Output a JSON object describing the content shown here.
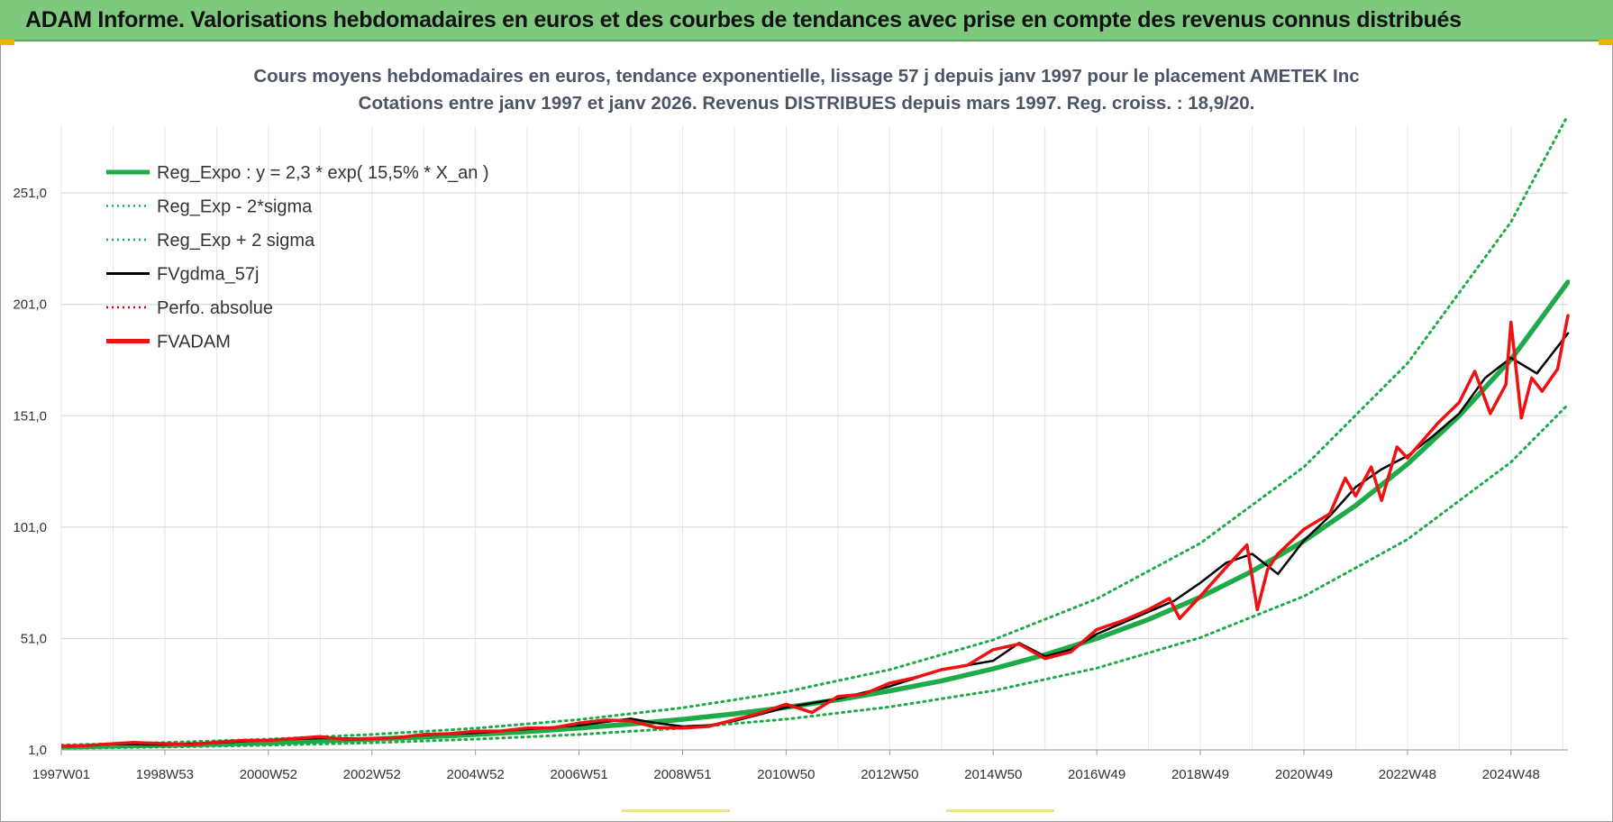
{
  "banner": {
    "title": "ADAM Informe. Valorisations hebdomadaires en euros et des courbes de tendances avec prise en compte des revenus connus distribués"
  },
  "colors": {
    "banner_bg": "#7fc97f",
    "reg_expo": "#1faa4a",
    "fvgdma": "#000000",
    "fvadam": "#ee1111",
    "perfo": "#cc0000",
    "grid": "#dcdcdc"
  },
  "chart_data": {
    "type": "line",
    "title": "Cours moyens hebdomadaires en euros, tendance exponentielle, lissage 57 j depuis janv 1997 pour le placement AMETEK Inc",
    "subtitle": "Cotations entre janv 1997 et janv 2026. Revenus DISTRIBUES depuis mars 1997. Reg. croiss. : 18,9/20.",
    "xlabel": "",
    "ylabel": "",
    "x_range": [
      1997.0,
      2026.1
    ],
    "ylim": [
      1.0,
      281.0
    ],
    "y_ticks": [
      1.0,
      51.0,
      101.0,
      151.0,
      201.0,
      251.0
    ],
    "y_tick_labels": [
      "1,0",
      "51,0",
      "101,0",
      "151,0",
      "201,0",
      "251,0"
    ],
    "x_ticks": [
      1997.0,
      1999.0,
      2001.0,
      2003.0,
      2005.0,
      2007.0,
      2009.0,
      2011.0,
      2013.0,
      2015.0,
      2017.0,
      2019.0,
      2021.0,
      2023.0,
      2025.0
    ],
    "x_tick_labels": [
      "1997W01",
      "1998W53",
      "2000W52",
      "2002W52",
      "2004W52",
      "2006W51",
      "2008W51",
      "2010W50",
      "2012W50",
      "2014W50",
      "2016W49",
      "2018W49",
      "2020W49",
      "2022W48",
      "2024W48"
    ],
    "grid": true,
    "legend_position": "top-left",
    "legend": [
      {
        "label": "Reg_Expo : y = 2,3 * exp( 15,5% *  X_an )",
        "style": "solid-thick",
        "color": "#1faa4a"
      },
      {
        "label": "Reg_Exp - 2*sigma",
        "style": "dotted",
        "color": "#1faa4a"
      },
      {
        "label": "Reg_Exp + 2 sigma",
        "style": "dotted",
        "color": "#1faa4a"
      },
      {
        "label": "FVgdma_57j",
        "style": "solid",
        "color": "#000000"
      },
      {
        "label": "Perfo. absolue",
        "style": "dotted",
        "color": "#cc0000"
      },
      {
        "label": "FVADAM",
        "style": "solid-thick",
        "color": "#ee1111"
      }
    ],
    "series": [
      {
        "name": "Reg_Expo : y = 2,3 * exp( 15,5% *  X_an )",
        "x": [
          1997.0,
          1998.0,
          1999.0,
          2000.0,
          2001.0,
          2002.0,
          2003.0,
          2004.0,
          2005.0,
          2006.0,
          2007.0,
          2008.0,
          2009.0,
          2010.0,
          2011.0,
          2012.0,
          2013.0,
          2014.0,
          2015.0,
          2016.0,
          2017.0,
          2018.0,
          2019.0,
          2020.0,
          2021.0,
          2022.0,
          2023.0,
          2024.0,
          2025.0,
          2026.1
        ],
        "values": [
          2.3,
          2.7,
          3.1,
          3.6,
          4.2,
          5.0,
          5.8,
          6.8,
          7.9,
          9.2,
          10.8,
          12.6,
          14.7,
          17.2,
          20.1,
          23.5,
          27.5,
          32.0,
          37.4,
          43.7,
          51.0,
          59.6,
          69.6,
          81.2,
          94.8,
          110.7,
          129.3,
          151.0,
          176.3,
          211.0
        ]
      },
      {
        "name": "Reg_Exp - 2*sigma",
        "x": [
          1997.0,
          1999.0,
          2001.0,
          2003.0,
          2005.0,
          2007.0,
          2009.0,
          2011.0,
          2013.0,
          2015.0,
          2017.0,
          2019.0,
          2021.0,
          2023.0,
          2025.0,
          2026.1
        ],
        "values": [
          1.7,
          2.3,
          3.1,
          4.2,
          5.8,
          7.9,
          10.8,
          14.8,
          20.3,
          27.6,
          37.7,
          51.4,
          70.0,
          95.5,
          130.2,
          156.0
        ]
      },
      {
        "name": "Reg_Exp + 2 sigma",
        "x": [
          1997.0,
          1999.0,
          2001.0,
          2003.0,
          2005.0,
          2007.0,
          2009.0,
          2011.0,
          2013.0,
          2015.0,
          2017.0,
          2019.0,
          2021.0,
          2023.0,
          2025.0,
          2026.1
        ],
        "values": [
          3.2,
          4.3,
          5.8,
          7.9,
          10.7,
          14.6,
          19.9,
          27.1,
          37.0,
          50.4,
          68.8,
          93.8,
          128.0,
          174.5,
          238.0,
          286.0
        ]
      },
      {
        "name": "FVgdma_57j",
        "x": [
          1997.0,
          1998.0,
          1999.0,
          2000.0,
          2001.0,
          2002.0,
          2003.0,
          2004.0,
          2005.0,
          2006.0,
          2007.0,
          2008.0,
          2008.5,
          2009.0,
          2009.5,
          2010.0,
          2011.0,
          2012.0,
          2013.0,
          2014.0,
          2015.0,
          2015.5,
          2016.0,
          2016.5,
          2017.0,
          2018.0,
          2018.5,
          2019.0,
          2019.5,
          2020.0,
          2020.5,
          2021.0,
          2021.5,
          2022.0,
          2022.5,
          2023.0,
          2023.5,
          2024.0,
          2024.5,
          2025.0,
          2025.5,
          2026.1
        ],
        "values": [
          2.5,
          3.6,
          3.4,
          4.2,
          5.4,
          6.3,
          5.9,
          7.6,
          8.6,
          10.3,
          12.0,
          15.0,
          13.0,
          11.5,
          12.0,
          14.0,
          20.0,
          24.0,
          29.5,
          37.0,
          41.0,
          49.0,
          43.0,
          46.0,
          53.0,
          63.0,
          68.0,
          76.0,
          85.0,
          89.0,
          80.0,
          95.0,
          106.0,
          119.0,
          127.0,
          133.0,
          142.0,
          152.0,
          168.0,
          177.0,
          170.0,
          188.0
        ]
      },
      {
        "name": "FVADAM",
        "x": [
          1997.0,
          1997.5,
          1998.0,
          1998.4,
          1998.8,
          1999.5,
          2000.0,
          2000.5,
          2001.0,
          2001.5,
          2002.0,
          2002.5,
          2003.0,
          2003.5,
          2004.0,
          2004.5,
          2005.0,
          2005.5,
          2006.0,
          2006.5,
          2007.0,
          2007.5,
          2008.0,
          2008.5,
          2009.0,
          2009.5,
          2010.0,
          2010.5,
          2011.0,
          2011.5,
          2012.0,
          2012.5,
          2013.0,
          2013.5,
          2014.0,
          2014.5,
          2015.0,
          2015.5,
          2016.0,
          2016.5,
          2017.0,
          2017.5,
          2018.0,
          2018.4,
          2018.6,
          2019.0,
          2019.5,
          2019.9,
          2020.1,
          2020.3,
          2020.5,
          2021.0,
          2021.5,
          2021.8,
          2022.0,
          2022.3,
          2022.5,
          2022.8,
          2023.0,
          2023.3,
          2023.6,
          2024.0,
          2024.3,
          2024.6,
          2024.9,
          2025.0,
          2025.2,
          2025.4,
          2025.6,
          2025.9,
          2026.1
        ],
        "values": [
          2.6,
          3.0,
          3.8,
          4.3,
          4.0,
          3.3,
          4.5,
          5.2,
          5.3,
          6.1,
          7.0,
          5.6,
          6.0,
          6.5,
          7.9,
          8.3,
          9.4,
          9.5,
          10.8,
          10.9,
          13.0,
          14.4,
          14.0,
          11.0,
          10.8,
          11.5,
          14.5,
          17.5,
          21.5,
          17.8,
          25.0,
          26.0,
          31.0,
          33.5,
          37.0,
          39.0,
          46.0,
          48.5,
          42.0,
          45.0,
          55.0,
          59.0,
          64.0,
          69.0,
          60.0,
          70.0,
          83.0,
          93.0,
          64.0,
          82.0,
          89.0,
          100.0,
          107.0,
          123.0,
          115.0,
          128.0,
          113.0,
          137.0,
          132.0,
          140.0,
          148.0,
          157.0,
          171.0,
          152.0,
          165.0,
          193.0,
          150.0,
          168.0,
          162.0,
          172.0,
          196.0
        ]
      }
    ]
  }
}
